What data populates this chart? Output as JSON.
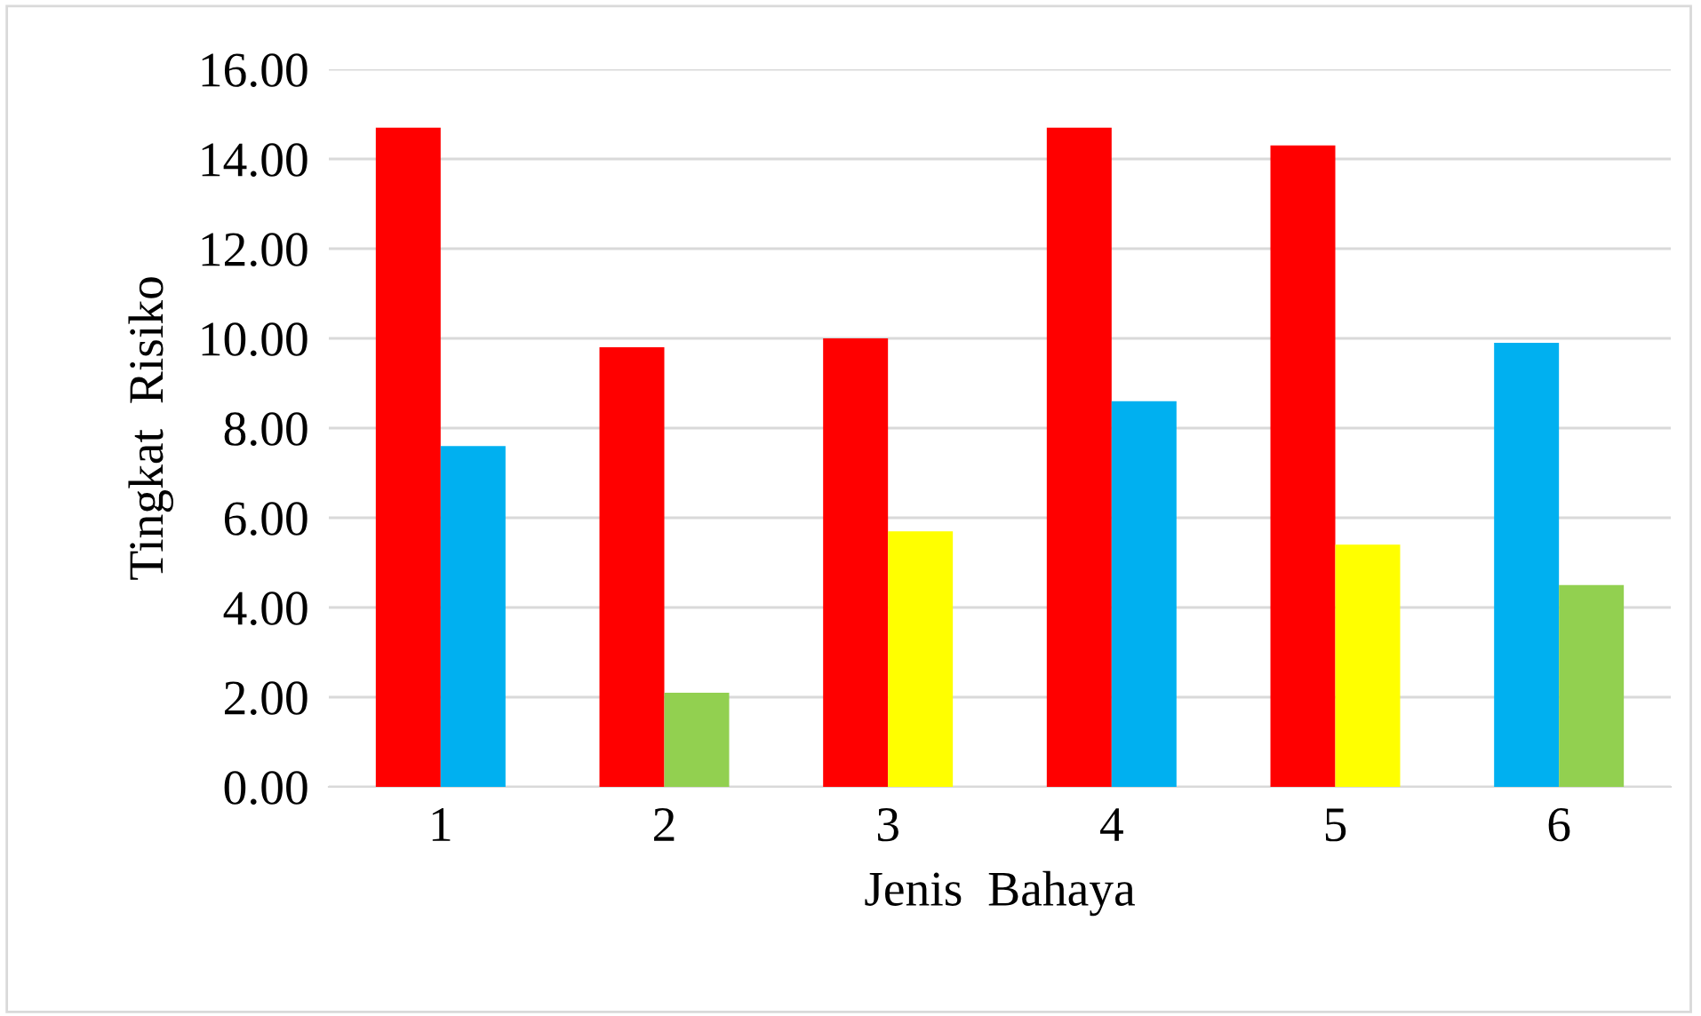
{
  "chart_data": {
    "type": "bar",
    "xlabel": "Jenis  Bahaya",
    "ylabel": "Tingkat  Risiko",
    "categories": [
      "1",
      "2",
      "3",
      "4",
      "5",
      "6"
    ],
    "series": [
      {
        "colors": [
          "#ff0000",
          "#ff0000",
          "#ff0000",
          "#ff0000",
          "#ff0000",
          "#00b0f0"
        ],
        "values": [
          14.7,
          9.8,
          10.0,
          14.7,
          14.3,
          9.9
        ]
      },
      {
        "colors": [
          "#00b0f0",
          "#92d050",
          "#ffff00",
          "#00b0f0",
          "#ffff00",
          "#92d050"
        ],
        "values": [
          7.6,
          2.1,
          5.7,
          8.6,
          5.4,
          4.5
        ]
      }
    ],
    "ylim": [
      0,
      16
    ],
    "yticks": [
      {
        "value": 0,
        "label": "0.00"
      },
      {
        "value": 2,
        "label": "2.00"
      },
      {
        "value": 4,
        "label": "4.00"
      },
      {
        "value": 6,
        "label": "6.00"
      },
      {
        "value": 8,
        "label": "8.00"
      },
      {
        "value": 10,
        "label": "10.00"
      },
      {
        "value": 12,
        "label": "12.00"
      },
      {
        "value": 14,
        "label": "14.00"
      },
      {
        "value": 16,
        "label": "16.00"
      }
    ],
    "grid": "y"
  }
}
